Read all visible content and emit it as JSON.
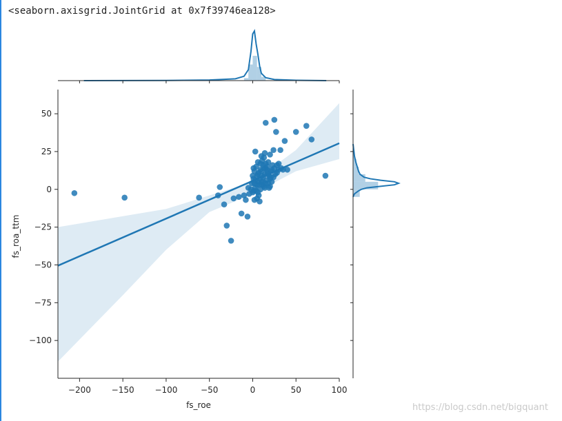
{
  "output": {
    "repr": "<seaborn.axisgrid.JointGrid at 0x7f39746ea128>",
    "watermark": "https://blog.csdn.net/bigquant"
  },
  "chart_data": {
    "type": "scatter",
    "xlabel": "fs_roe",
    "ylabel": "fs_roa_ttm",
    "xlim": [
      -225,
      100
    ],
    "ylim": [
      -125,
      66
    ],
    "xticks": [
      -200,
      -150,
      -100,
      -50,
      0,
      50,
      100
    ],
    "yticks": [
      50,
      25,
      0,
      -25,
      -50,
      -75,
      -100
    ],
    "grid": false,
    "color": "#1f77b4",
    "regression": {
      "line": [
        [
          -225,
          -50.5
        ],
        [
          100,
          30.5
        ]
      ],
      "ci_upper": [
        [
          -225,
          -25
        ],
        [
          -100,
          -13
        ],
        [
          0,
          5
        ],
        [
          50,
          26
        ],
        [
          100,
          57
        ]
      ],
      "ci_lower": [
        [
          -225,
          -114
        ],
        [
          -150,
          -70
        ],
        [
          -100,
          -40
        ],
        [
          -50,
          -15
        ],
        [
          0,
          -3
        ],
        [
          50,
          12
        ],
        [
          100,
          20
        ]
      ]
    },
    "scatter_points": [
      [
        -206,
        -2.5
      ],
      [
        -148,
        -5.5
      ],
      [
        -62,
        -5.5
      ],
      [
        -40,
        -4
      ],
      [
        -38,
        1.5
      ],
      [
        -33,
        -10
      ],
      [
        -30,
        -24
      ],
      [
        -25,
        -34
      ],
      [
        -22,
        -6
      ],
      [
        -16,
        -5
      ],
      [
        -13,
        -16
      ],
      [
        -10,
        -4
      ],
      [
        -8,
        -7
      ],
      [
        -6,
        -18
      ],
      [
        -5,
        1
      ],
      [
        -4,
        -3
      ],
      [
        -2,
        0
      ],
      [
        0,
        -2
      ],
      [
        2,
        -7
      ],
      [
        3,
        25
      ],
      [
        3,
        6
      ],
      [
        5,
        -6
      ],
      [
        6,
        -2
      ],
      [
        8,
        -8
      ],
      [
        10,
        22
      ],
      [
        12,
        16
      ],
      [
        14,
        24
      ],
      [
        15,
        44
      ],
      [
        15,
        17
      ],
      [
        18,
        18
      ],
      [
        20,
        23
      ],
      [
        22,
        13
      ],
      [
        24,
        26
      ],
      [
        25,
        46
      ],
      [
        27,
        38
      ],
      [
        28,
        16
      ],
      [
        30,
        17
      ],
      [
        32,
        26
      ],
      [
        35,
        13
      ],
      [
        37,
        32
      ],
      [
        40,
        13
      ],
      [
        50,
        38
      ],
      [
        62,
        42
      ],
      [
        68,
        33
      ],
      [
        84,
        9
      ],
      [
        1,
        7
      ],
      [
        2,
        12
      ],
      [
        4,
        15
      ],
      [
        5,
        9
      ],
      [
        6,
        18
      ],
      [
        7,
        11
      ],
      [
        8,
        3
      ],
      [
        9,
        13
      ],
      [
        10,
        5
      ],
      [
        11,
        19
      ],
      [
        12,
        8
      ],
      [
        13,
        2
      ],
      [
        14,
        10
      ],
      [
        15,
        14
      ],
      [
        16,
        6
      ],
      [
        17,
        11
      ],
      [
        18,
        4
      ],
      [
        19,
        9
      ],
      [
        20,
        7
      ],
      [
        21,
        12
      ],
      [
        22,
        5
      ],
      [
        23,
        16
      ],
      [
        24,
        8
      ],
      [
        26,
        10
      ],
      [
        -1,
        4
      ],
      [
        0,
        9
      ],
      [
        1,
        14
      ],
      [
        3,
        1
      ],
      [
        4,
        -1
      ],
      [
        6,
        5
      ],
      [
        7,
        -4
      ],
      [
        9,
        0
      ],
      [
        11,
        3
      ],
      [
        13,
        21
      ],
      [
        16,
        13
      ],
      [
        18,
        10
      ],
      [
        20,
        2
      ],
      [
        5,
        3
      ],
      [
        8,
        7
      ],
      [
        10,
        12
      ],
      [
        12,
        5
      ],
      [
        14,
        1
      ],
      [
        2,
        4
      ],
      [
        6,
        10
      ],
      [
        9,
        17
      ],
      [
        11,
        9
      ],
      [
        13,
        14
      ],
      [
        15,
        4
      ],
      [
        17,
        15
      ],
      [
        19,
        1
      ],
      [
        21,
        8
      ],
      [
        25,
        14
      ],
      [
        28,
        11
      ],
      [
        30,
        13
      ],
      [
        33,
        14
      ],
      [
        1,
        -1
      ]
    ],
    "marginal_x": {
      "kde": [
        [
          -195,
          0
        ],
        [
          -100,
          0.2
        ],
        [
          -50,
          0.8
        ],
        [
          -20,
          2.5
        ],
        [
          -10,
          6
        ],
        [
          -5,
          15
        ],
        [
          -2,
          40
        ],
        [
          0,
          64
        ],
        [
          2,
          68
        ],
        [
          4,
          50
        ],
        [
          6,
          36
        ],
        [
          8,
          20
        ],
        [
          10,
          10
        ],
        [
          15,
          4
        ],
        [
          25,
          1.5
        ],
        [
          50,
          0.5
        ],
        [
          85,
          0
        ]
      ],
      "hist": [
        [
          -10,
          -5,
          4
        ],
        [
          -5,
          0,
          26
        ],
        [
          0,
          5,
          40
        ],
        [
          5,
          10,
          22
        ],
        [
          10,
          15,
          6
        ]
      ]
    },
    "marginal_y": {
      "kde": [
        [
          -5,
          0
        ],
        [
          -3,
          2
        ],
        [
          -1,
          8
        ],
        [
          0,
          12
        ],
        [
          1,
          20
        ],
        [
          2,
          40
        ],
        [
          3,
          60
        ],
        [
          4,
          66
        ],
        [
          5,
          60
        ],
        [
          6,
          40
        ],
        [
          7,
          25
        ],
        [
          8,
          16
        ],
        [
          10,
          10
        ],
        [
          12,
          8
        ],
        [
          15,
          6
        ],
        [
          18,
          4
        ],
        [
          22,
          2
        ],
        [
          30,
          0
        ]
      ],
      "hist": [
        [
          -5,
          0,
          12
        ],
        [
          0,
          5,
          45
        ],
        [
          5,
          10,
          22
        ],
        [
          10,
          15,
          10
        ],
        [
          15,
          20,
          6
        ],
        [
          20,
          25,
          3
        ]
      ]
    }
  }
}
